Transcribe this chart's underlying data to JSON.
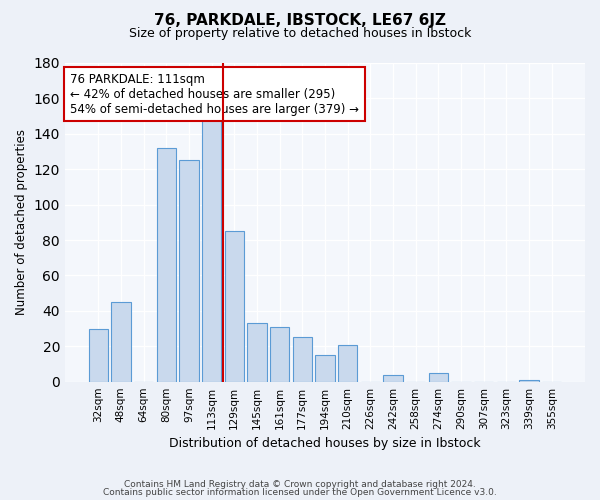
{
  "title": "76, PARKDALE, IBSTOCK, LE67 6JZ",
  "subtitle": "Size of property relative to detached houses in Ibstock",
  "xlabel": "Distribution of detached houses by size in Ibstock",
  "ylabel": "Number of detached properties",
  "bar_labels": [
    "32sqm",
    "48sqm",
    "64sqm",
    "80sqm",
    "97sqm",
    "113sqm",
    "129sqm",
    "145sqm",
    "161sqm",
    "177sqm",
    "194sqm",
    "210sqm",
    "226sqm",
    "242sqm",
    "258sqm",
    "274sqm",
    "290sqm",
    "307sqm",
    "323sqm",
    "339sqm",
    "355sqm"
  ],
  "bar_values": [
    30,
    45,
    0,
    132,
    125,
    148,
    85,
    33,
    31,
    25,
    15,
    21,
    0,
    4,
    0,
    5,
    0,
    0,
    0,
    1,
    0
  ],
  "bar_color": "#c9d9ed",
  "bar_edge_color": "#5b9bd5",
  "vline_color": "#cc0000",
  "annotation_title": "76 PARKDALE: 111sqm",
  "annotation_line1": "← 42% of detached houses are smaller (295)",
  "annotation_line2": "54% of semi-detached houses are larger (379) →",
  "annotation_box_color": "#ffffff",
  "annotation_box_edge": "#cc0000",
  "ylim": [
    0,
    180
  ],
  "yticks": [
    0,
    20,
    40,
    60,
    80,
    100,
    120,
    140,
    160,
    180
  ],
  "footer1": "Contains HM Land Registry data © Crown copyright and database right 2024.",
  "footer2": "Contains public sector information licensed under the Open Government Licence v3.0.",
  "bg_color": "#edf1f8",
  "plot_bg_color": "#f4f7fc"
}
